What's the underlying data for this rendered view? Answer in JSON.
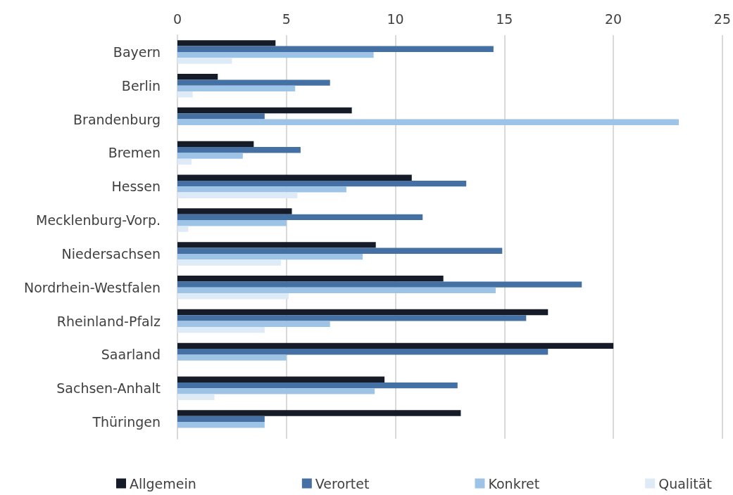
{
  "chart_data": {
    "type": "bar",
    "orientation": "horizontal",
    "categories": [
      "Bayern",
      "Berlin",
      "Brandenburg",
      "Bremen",
      "Hessen",
      "Mecklenburg-Vorp.",
      "Niedersachsen",
      "Nordrhein-Westfalen",
      "Rheinland-Pfalz",
      "Saarland",
      "Sachsen-Anhalt",
      "Thüringen"
    ],
    "series": [
      {
        "name": "Allgemein",
        "color": "#161b28",
        "values": [
          4.5,
          1.85,
          8.0,
          3.5,
          10.75,
          5.25,
          9.1,
          12.2,
          17.0,
          20.0,
          9.5,
          13.0
        ]
      },
      {
        "name": "Verortet",
        "color": "#4570a3",
        "values": [
          14.5,
          7.0,
          4.0,
          5.65,
          13.25,
          11.25,
          14.9,
          18.55,
          16.0,
          17.0,
          12.85,
          4.0
        ]
      },
      {
        "name": "Konkret",
        "color": "#9dc3e6",
        "values": [
          9.0,
          5.4,
          23.0,
          3.0,
          7.75,
          5.0,
          8.5,
          14.6,
          7.0,
          5.0,
          9.05,
          4.0
        ]
      },
      {
        "name": "Qualität",
        "color": "#deebf7",
        "values": [
          2.5,
          0.7,
          null,
          0.65,
          5.5,
          0.5,
          4.75,
          5.1,
          4.0,
          null,
          1.7,
          null
        ]
      }
    ],
    "xlim": [
      0,
      25
    ],
    "xticks": [
      0,
      5,
      10,
      15,
      20,
      25
    ],
    "grid": "x",
    "legend": "bottom"
  }
}
